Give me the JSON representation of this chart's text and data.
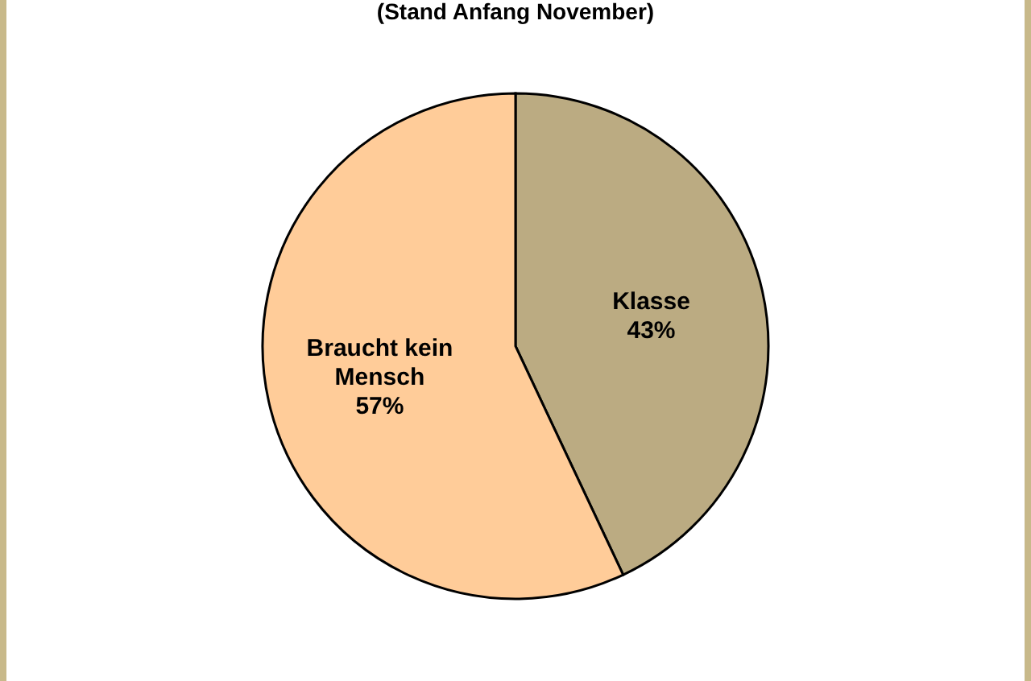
{
  "chart_data": {
    "type": "pie",
    "subtitle": "(Stand Anfang November)",
    "categories": [
      "Klasse",
      "Braucht kein Mensch"
    ],
    "values": [
      43,
      57
    ],
    "colors": [
      "#bbab82",
      "#ffcc99"
    ],
    "value_labels": [
      "43%",
      "57%"
    ]
  }
}
